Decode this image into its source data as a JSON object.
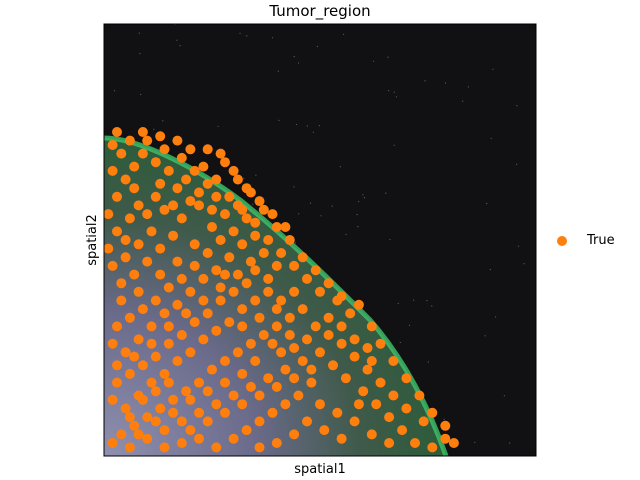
{
  "chart_data": {
    "type": "scatter",
    "title": "Tumor_region",
    "xlabel": "spatial1",
    "ylabel": "spatial2",
    "xlim": [
      0,
      1
    ],
    "ylim": [
      0,
      1
    ],
    "grid": false,
    "background": "tissue image",
    "legend_placement": "right",
    "series": [
      {
        "name": "True",
        "color": "#ff7f0e",
        "points": [
          [
            0.02,
            0.72
          ],
          [
            0.04,
            0.7
          ],
          [
            0.02,
            0.66
          ],
          [
            0.05,
            0.64
          ],
          [
            0.03,
            0.6
          ],
          [
            0.07,
            0.62
          ],
          [
            0.08,
            0.58
          ],
          [
            0.06,
            0.55
          ],
          [
            0.03,
            0.52
          ],
          [
            0.1,
            0.56
          ],
          [
            0.12,
            0.6
          ],
          [
            0.14,
            0.57
          ],
          [
            0.11,
            0.52
          ],
          [
            0.08,
            0.49
          ],
          [
            0.05,
            0.46
          ],
          [
            0.02,
            0.44
          ],
          [
            0.04,
            0.4
          ],
          [
            0.07,
            0.42
          ],
          [
            0.1,
            0.45
          ],
          [
            0.13,
            0.48
          ],
          [
            0.16,
            0.51
          ],
          [
            0.18,
            0.55
          ],
          [
            0.2,
            0.59
          ],
          [
            0.17,
            0.62
          ],
          [
            0.15,
            0.66
          ],
          [
            0.12,
            0.68
          ],
          [
            0.09,
            0.7
          ],
          [
            0.1,
            0.73
          ],
          [
            0.14,
            0.71
          ],
          [
            0.18,
            0.69
          ],
          [
            0.21,
            0.66
          ],
          [
            0.24,
            0.63
          ],
          [
            0.22,
            0.58
          ],
          [
            0.26,
            0.6
          ],
          [
            0.28,
            0.56
          ],
          [
            0.31,
            0.58
          ],
          [
            0.33,
            0.55
          ],
          [
            0.3,
            0.52
          ],
          [
            0.27,
            0.5
          ],
          [
            0.24,
            0.47
          ],
          [
            0.21,
            0.44
          ],
          [
            0.18,
            0.41
          ],
          [
            0.15,
            0.39
          ],
          [
            0.12,
            0.36
          ],
          [
            0.09,
            0.34
          ],
          [
            0.06,
            0.32
          ],
          [
            0.03,
            0.3
          ],
          [
            0.02,
            0.26
          ],
          [
            0.05,
            0.24
          ],
          [
            0.08,
            0.27
          ],
          [
            0.11,
            0.3
          ],
          [
            0.14,
            0.33
          ],
          [
            0.17,
            0.35
          ],
          [
            0.2,
            0.38
          ],
          [
            0.23,
            0.41
          ],
          [
            0.26,
            0.43
          ],
          [
            0.29,
            0.46
          ],
          [
            0.32,
            0.49
          ],
          [
            0.35,
            0.51
          ],
          [
            0.37,
            0.47
          ],
          [
            0.4,
            0.44
          ],
          [
            0.38,
            0.41
          ],
          [
            0.35,
            0.43
          ],
          [
            0.33,
            0.4
          ],
          [
            0.3,
            0.38
          ],
          [
            0.27,
            0.36
          ],
          [
            0.24,
            0.33
          ],
          [
            0.21,
            0.31
          ],
          [
            0.18,
            0.28
          ],
          [
            0.15,
            0.26
          ],
          [
            0.12,
            0.23
          ],
          [
            0.09,
            0.21
          ],
          [
            0.06,
            0.19
          ],
          [
            0.03,
            0.17
          ],
          [
            0.02,
            0.13
          ],
          [
            0.05,
            0.11
          ],
          [
            0.08,
            0.14
          ],
          [
            0.11,
            0.17
          ],
          [
            0.14,
            0.19
          ],
          [
            0.17,
            0.22
          ],
          [
            0.2,
            0.24
          ],
          [
            0.23,
            0.27
          ],
          [
            0.26,
            0.29
          ],
          [
            0.29,
            0.31
          ],
          [
            0.32,
            0.34
          ],
          [
            0.35,
            0.36
          ],
          [
            0.38,
            0.38
          ],
          [
            0.41,
            0.36
          ],
          [
            0.44,
            0.38
          ],
          [
            0.46,
            0.34
          ],
          [
            0.43,
            0.32
          ],
          [
            0.4,
            0.3
          ],
          [
            0.37,
            0.28
          ],
          [
            0.34,
            0.26
          ],
          [
            0.31,
            0.24
          ],
          [
            0.28,
            0.22
          ],
          [
            0.25,
            0.2
          ],
          [
            0.22,
            0.17
          ],
          [
            0.19,
            0.15
          ],
          [
            0.16,
            0.13
          ],
          [
            0.13,
            0.11
          ],
          [
            0.1,
            0.09
          ],
          [
            0.07,
            0.07
          ],
          [
            0.04,
            0.05
          ],
          [
            0.02,
            0.03
          ],
          [
            0.06,
            0.02
          ],
          [
            0.1,
            0.04
          ],
          [
            0.14,
            0.06
          ],
          [
            0.18,
            0.08
          ],
          [
            0.22,
            0.1
          ],
          [
            0.26,
            0.12
          ],
          [
            0.3,
            0.14
          ],
          [
            0.34,
            0.16
          ],
          [
            0.38,
            0.18
          ],
          [
            0.42,
            0.2
          ],
          [
            0.46,
            0.22
          ],
          [
            0.5,
            0.24
          ],
          [
            0.53,
            0.21
          ],
          [
            0.56,
            0.18
          ],
          [
            0.6,
            0.15
          ],
          [
            0.63,
            0.12
          ],
          [
            0.66,
            0.09
          ],
          [
            0.69,
            0.06
          ],
          [
            0.72,
            0.03
          ],
          [
            0.76,
            0.02
          ],
          [
            0.79,
            0.04
          ],
          [
            0.74,
            0.08
          ],
          [
            0.7,
            0.11
          ],
          [
            0.67,
            0.14
          ],
          [
            0.64,
            0.17
          ],
          [
            0.61,
            0.2
          ],
          [
            0.58,
            0.23
          ],
          [
            0.55,
            0.26
          ],
          [
            0.52,
            0.28
          ],
          [
            0.49,
            0.3
          ],
          [
            0.47,
            0.27
          ],
          [
            0.44,
            0.25
          ],
          [
            0.41,
            0.24
          ],
          [
            0.48,
            0.17
          ],
          [
            0.45,
            0.14
          ],
          [
            0.42,
            0.12
          ],
          [
            0.39,
            0.1
          ],
          [
            0.36,
            0.08
          ],
          [
            0.33,
            0.06
          ],
          [
            0.3,
            0.04
          ],
          [
            0.26,
            0.02
          ],
          [
            0.22,
            0.04
          ],
          [
            0.18,
            0.03
          ],
          [
            0.14,
            0.02
          ],
          [
            0.5,
            0.12
          ],
          [
            0.54,
            0.1
          ],
          [
            0.58,
            0.08
          ],
          [
            0.62,
            0.05
          ],
          [
            0.66,
            0.03
          ],
          [
            0.55,
            0.04
          ],
          [
            0.51,
            0.06
          ],
          [
            0.47,
            0.08
          ],
          [
            0.44,
            0.05
          ],
          [
            0.4,
            0.03
          ],
          [
            0.36,
            0.02
          ],
          [
            0.52,
            0.32
          ],
          [
            0.55,
            0.3
          ],
          [
            0.58,
            0.27
          ],
          [
            0.61,
            0.25
          ],
          [
            0.57,
            0.33
          ],
          [
            0.54,
            0.36
          ],
          [
            0.5,
            0.38
          ],
          [
            0.47,
            0.41
          ],
          [
            0.44,
            0.44
          ],
          [
            0.41,
            0.47
          ],
          [
            0.38,
            0.5
          ],
          [
            0.35,
            0.54
          ],
          [
            0.32,
            0.57
          ],
          [
            0.29,
            0.6
          ],
          [
            0.26,
            0.64
          ],
          [
            0.23,
            0.67
          ],
          [
            0.2,
            0.71
          ],
          [
            0.17,
            0.73
          ],
          [
            0.13,
            0.74
          ],
          [
            0.09,
            0.75
          ],
          [
            0.06,
            0.73
          ],
          [
            0.03,
            0.75
          ],
          [
            0.24,
            0.71
          ],
          [
            0.28,
            0.68
          ],
          [
            0.31,
            0.64
          ],
          [
            0.34,
            0.61
          ],
          [
            0.37,
            0.57
          ],
          [
            0.4,
            0.53
          ],
          [
            0.43,
            0.5
          ],
          [
            0.46,
            0.46
          ],
          [
            0.49,
            0.43
          ],
          [
            0.52,
            0.4
          ],
          [
            0.55,
            0.37
          ],
          [
            0.59,
            0.35
          ],
          [
            0.62,
            0.3
          ],
          [
            0.64,
            0.26
          ],
          [
            0.67,
            0.22
          ],
          [
            0.7,
            0.18
          ],
          [
            0.73,
            0.14
          ],
          [
            0.76,
            0.1
          ],
          [
            0.79,
            0.07
          ],
          [
            0.81,
            0.03
          ],
          [
            0.62,
            0.22
          ],
          [
            0.59,
            0.12
          ],
          [
            0.06,
            0.09
          ],
          [
            0.09,
            0.13
          ],
          [
            0.12,
            0.15
          ],
          [
            0.15,
            0.17
          ],
          [
            0.03,
            0.21
          ],
          [
            0.07,
            0.23
          ],
          [
            0.11,
            0.26
          ],
          [
            0.15,
            0.3
          ],
          [
            0.19,
            0.33
          ],
          [
            0.23,
            0.36
          ],
          [
            0.27,
            0.39
          ],
          [
            0.31,
            0.42
          ],
          [
            0.34,
            0.45
          ],
          [
            0.04,
            0.36
          ],
          [
            0.08,
            0.38
          ],
          [
            0.13,
            0.42
          ],
          [
            0.17,
            0.45
          ],
          [
            0.21,
            0.49
          ],
          [
            0.25,
            0.53
          ],
          [
            0.28,
            0.42
          ],
          [
            0.32,
            0.3
          ],
          [
            0.36,
            0.32
          ],
          [
            0.4,
            0.34
          ],
          [
            0.43,
            0.28
          ],
          [
            0.39,
            0.26
          ],
          [
            0.35,
            0.22
          ],
          [
            0.32,
            0.19
          ],
          [
            0.28,
            0.17
          ],
          [
            0.24,
            0.15
          ],
          [
            0.2,
            0.13
          ],
          [
            0.16,
            0.1
          ],
          [
            0.12,
            0.08
          ],
          [
            0.08,
            0.05
          ],
          [
            0.2,
            0.06
          ],
          [
            0.24,
            0.08
          ],
          [
            0.28,
            0.1
          ],
          [
            0.32,
            0.12
          ],
          [
            0.36,
            0.14
          ],
          [
            0.4,
            0.16
          ],
          [
            0.44,
            0.18
          ],
          [
            0.48,
            0.2
          ],
          [
            0.19,
            0.64
          ],
          [
            0.22,
            0.61
          ],
          [
            0.25,
            0.57
          ],
          [
            0.16,
            0.58
          ],
          [
            0.13,
            0.63
          ],
          [
            0.27,
            0.7
          ],
          [
            0.3,
            0.66
          ],
          [
            0.33,
            0.62
          ],
          [
            0.36,
            0.59
          ],
          [
            0.39,
            0.56
          ],
          [
            0.42,
            0.53
          ],
          [
            0.07,
            0.67
          ],
          [
            0.05,
            0.5
          ],
          [
            0.01,
            0.48
          ],
          [
            0.01,
            0.56
          ]
        ]
      }
    ]
  }
}
